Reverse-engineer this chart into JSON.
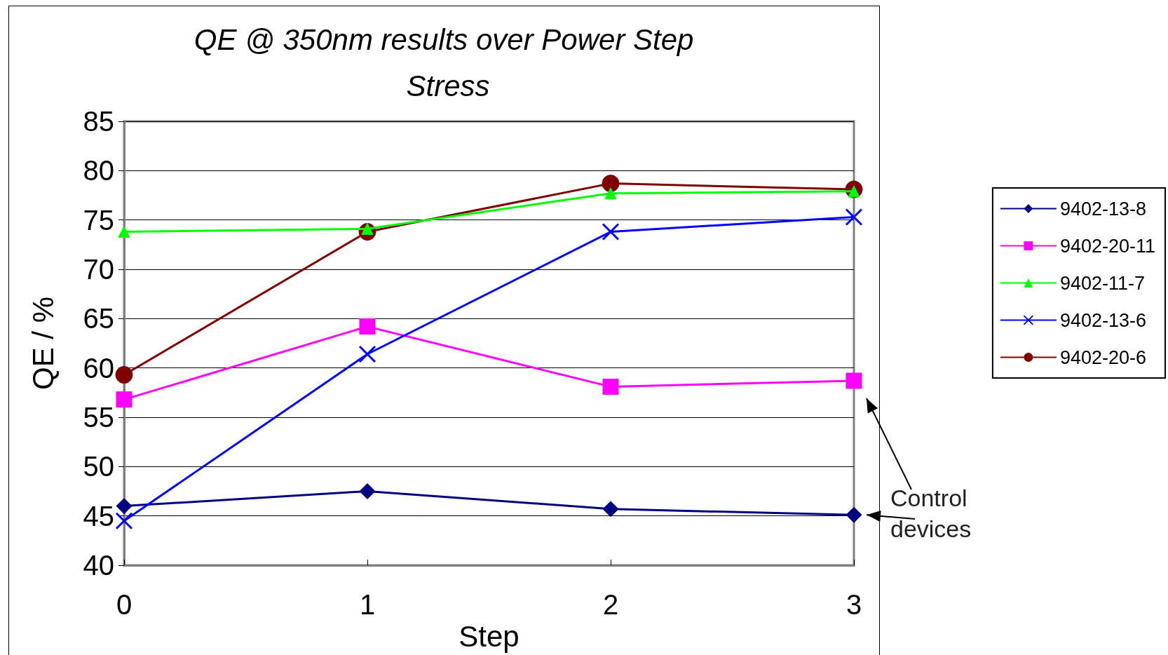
{
  "chart_data": {
    "type": "line",
    "title": "QE @ 350nm results over Power Step Stress",
    "xlabel": "Step",
    "ylabel": "QE / %",
    "x": [
      0,
      1,
      2,
      3
    ],
    "xlim": [
      0,
      3
    ],
    "xticks": [
      0,
      1,
      2,
      3
    ],
    "ylim": [
      40,
      85
    ],
    "yticks": [
      40,
      45,
      50,
      55,
      60,
      65,
      70,
      75,
      80,
      85
    ],
    "grid": "y",
    "legend": "right",
    "series": [
      {
        "name": "9402-13-8",
        "color": "#000080",
        "marker": "diamond",
        "values": [
          46,
          47.5,
          45.7,
          45.1
        ]
      },
      {
        "name": "9402-20-11",
        "color": "#ff00ff",
        "marker": "square",
        "values": [
          56.8,
          64.2,
          58.1,
          58.7
        ]
      },
      {
        "name": "9402-11-7",
        "color": "#00ff00",
        "marker": "triangle",
        "values": [
          73.8,
          74.1,
          77.7,
          77.9
        ]
      },
      {
        "name": "9402-13-6",
        "color": "#0000ff",
        "marker": "cross",
        "values": [
          44.5,
          61.4,
          73.8,
          75.3
        ]
      },
      {
        "name": "9402-20-6",
        "color": "#800000",
        "marker": "circle",
        "values": [
          59.3,
          73.8,
          78.7,
          78.1
        ]
      }
    ],
    "annotations": [
      "Control devices"
    ]
  }
}
